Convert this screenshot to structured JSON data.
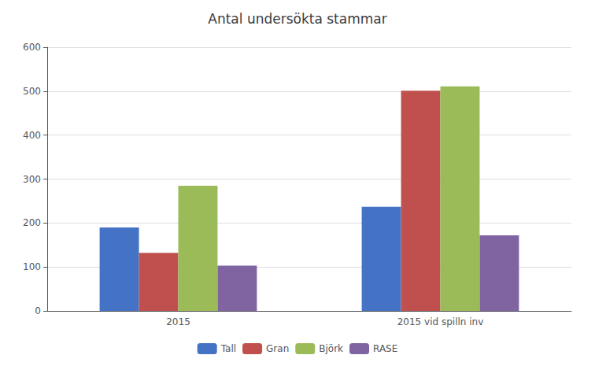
{
  "chart_data": {
    "type": "bar",
    "title": "Antal undersökta stammar",
    "categories": [
      "2015",
      "2015 vid spilln inv"
    ],
    "series": [
      {
        "name": "Tall",
        "color": "#4472C4",
        "values": [
          190,
          237
        ]
      },
      {
        "name": "Gran",
        "color": "#C0504D",
        "values": [
          132,
          501
        ]
      },
      {
        "name": "Björk",
        "color": "#9BBB59",
        "values": [
          285,
          511
        ]
      },
      {
        "name": "RASE",
        "color": "#8064A2",
        "values": [
          103,
          172
        ]
      }
    ],
    "ylim": [
      0,
      600
    ],
    "yticks": [
      0,
      100,
      200,
      300,
      400,
      500,
      600
    ],
    "grid": true,
    "legend": "bottom"
  }
}
